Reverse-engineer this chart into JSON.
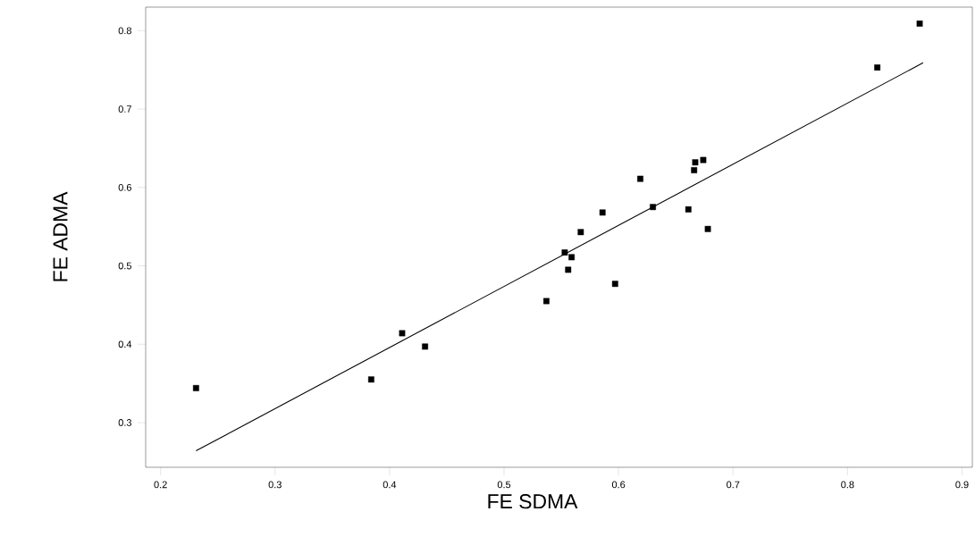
{
  "chart_data": {
    "type": "scatter",
    "xlabel": "FE SDMA",
    "ylabel": "FE ADMA",
    "xlim": [
      0.187,
      0.909
    ],
    "ylim": [
      0.243,
      0.83
    ],
    "xticks": [
      0.2,
      0.3,
      0.4,
      0.5,
      0.6,
      0.7,
      0.8,
      0.9
    ],
    "yticks": [
      0.3,
      0.4,
      0.5,
      0.6,
      0.7,
      0.8
    ],
    "marker": "square",
    "series": [
      {
        "color": "#000000",
        "x": [
          0.231,
          0.384,
          0.411,
          0.431,
          0.537,
          0.553,
          0.559,
          0.556,
          0.567,
          0.586,
          0.597,
          0.619,
          0.63,
          0.661,
          0.666,
          0.667,
          0.674,
          0.678,
          0.826,
          0.863
        ],
        "values": [
          0.344,
          0.355,
          0.414,
          0.397,
          0.455,
          0.517,
          0.511,
          0.495,
          0.543,
          0.568,
          0.477,
          0.611,
          0.575,
          0.572,
          0.622,
          0.632,
          0.635,
          0.547,
          0.753,
          0.809
        ]
      },
      {
        "type": "line",
        "color": "#000000",
        "marker": "none",
        "line_style": "solid",
        "x": [
          0.231,
          0.866
        ],
        "values": [
          0.264,
          0.759
        ]
      }
    ]
  }
}
